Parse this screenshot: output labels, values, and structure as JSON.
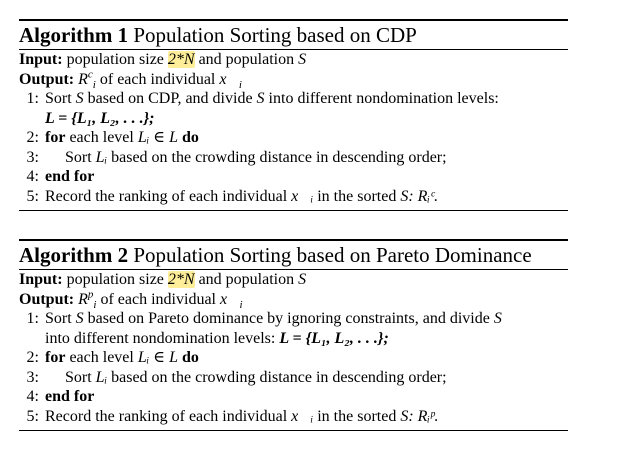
{
  "algorithm1": {
    "label": "Algorithm 1",
    "title": "Population Sorting based on CDP",
    "input_label": "Input:",
    "input_pre": "population size",
    "input_highlight": "2*N",
    "input_post": "and population",
    "input_var": "S",
    "output_label": "Output:",
    "output_sym": "R",
    "output_sup": "c",
    "output_sub": "i",
    "output_text": "of each individual",
    "output_vec": "x⃗",
    "output_vec_sub": "i",
    "steps": {
      "s1_num": "1:",
      "s1_a": "Sort",
      "s1_var": "S",
      "s1_b": "based on CDP, and divide",
      "s1_var2": "S",
      "s1_c": "into different nondomination levels:",
      "s1_set": "L = {L₁, L₂, . . .};",
      "s2_num": "2:",
      "s2_kw": "for",
      "s2_text": "each level",
      "s2_math": "Lᵢ ∈ L",
      "s2_kw2": "do",
      "s3_num": "3:",
      "s3_a": "Sort",
      "s3_var": "Lᵢ",
      "s3_b": "based on the crowding distance in descending order;",
      "s4_num": "4:",
      "s4_kw": "end for",
      "s5_num": "5:",
      "s5_a": "Record the ranking of each individual",
      "s5_vec": "x⃗ᵢ",
      "s5_b": "in the sorted",
      "s5_var": "S:",
      "s5_res": "Rᵢᶜ."
    }
  },
  "algorithm2": {
    "label": "Algorithm 2",
    "title": "Population Sorting based on Pareto Dominance",
    "input_label": "Input:",
    "input_pre": "population size",
    "input_highlight": "2*N",
    "input_post": "and population",
    "input_var": "S",
    "output_label": "Output:",
    "output_sym": "R",
    "output_sup": "p",
    "output_sub": "i",
    "output_text": "of each individual",
    "output_vec": "x⃗",
    "output_vec_sub": "i",
    "steps": {
      "s1_num": "1:",
      "s1_a": "Sort",
      "s1_var": "S",
      "s1_b": "based on Pareto dominance by ignoring constraints, and divide",
      "s1_var2": "S",
      "s1_c": "into different nondomination levels:",
      "s1_set": "L = {L₁, L₂, . . .};",
      "s2_num": "2:",
      "s2_kw": "for",
      "s2_text": "each level",
      "s2_math": "Lᵢ ∈ L",
      "s2_kw2": "do",
      "s3_num": "3:",
      "s3_a": "Sort",
      "s3_var": "Lᵢ",
      "s3_b": "based on the crowding distance in descending order;",
      "s4_num": "4:",
      "s4_kw": "end for",
      "s5_num": "5:",
      "s5_a": "Record the ranking of each individual",
      "s5_vec": "x⃗ᵢ",
      "s5_b": "in the sorted",
      "s5_var": "S:",
      "s5_res": "Rᵢᵖ."
    }
  }
}
